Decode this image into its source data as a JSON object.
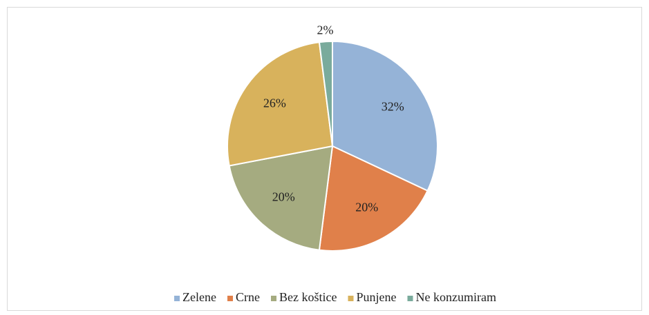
{
  "chart_data": {
    "type": "pie",
    "categories": [
      "Zelene",
      "Crne",
      "Bez koštice",
      "Punjene",
      "Ne konzumiram"
    ],
    "values": [
      32,
      20,
      20,
      26,
      2
    ],
    "value_labels": [
      "32%",
      "20%",
      "20%",
      "26%",
      "2%"
    ],
    "colors": [
      "#95b3d7",
      "#e0804a",
      "#a5ab80",
      "#d8b25c",
      "#7aab9c"
    ],
    "legend": "bottom"
  }
}
